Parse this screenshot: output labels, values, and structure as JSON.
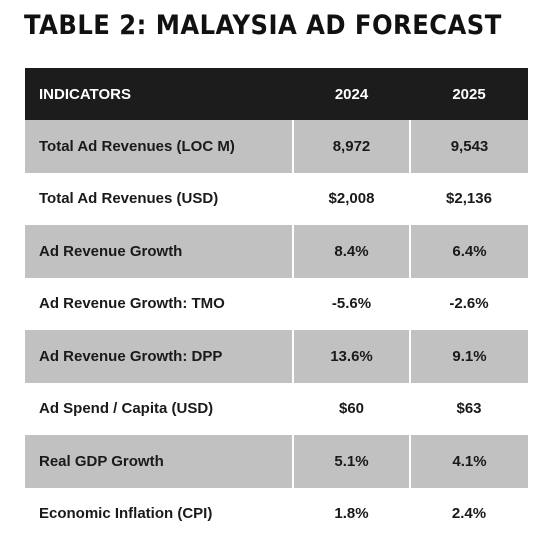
{
  "title": "TABLE 2: MALAYSIA AD FORECAST",
  "table": {
    "headers": [
      "INDICATORS",
      "2024",
      "2025"
    ],
    "rows": [
      [
        "Total Ad Revenues (LOC M)",
        "8,972",
        "9,543"
      ],
      [
        "Total Ad Revenues (USD)",
        "$2,008",
        "$2,136"
      ],
      [
        "Ad Revenue Growth",
        "8.4%",
        "6.4%"
      ],
      [
        "Ad Revenue Growth: TMO",
        "-5.6%",
        "-2.6%"
      ],
      [
        "Ad Revenue Growth: DPP",
        "13.6%",
        "9.1%"
      ],
      [
        "Ad Spend / Capita (USD)",
        "$60",
        "$63"
      ],
      [
        "Real GDP Growth",
        "5.1%",
        "4.1%"
      ],
      [
        "Economic Inflation (CPI)",
        "1.8%",
        "2.4%"
      ]
    ]
  },
  "colors": {
    "header_bg": "#1c1c1c",
    "shaded_row_bg": "#c1c1c1",
    "text": "#1a1a1a"
  }
}
